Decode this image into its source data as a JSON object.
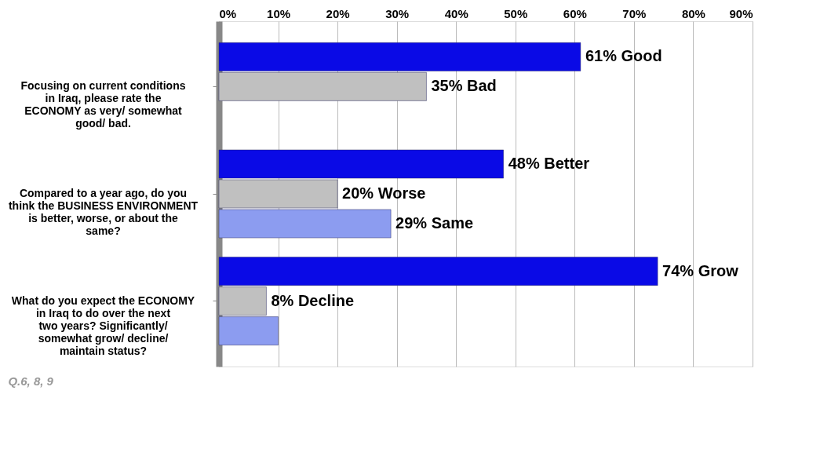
{
  "chart_data": {
    "type": "bar",
    "orientation": "horizontal",
    "categories": [
      "Focusing on current conditions in Iraq, please rate the ECONOMY as very/ somewhat good/ bad.",
      "Compared to a year ago, do you think the BUSINESS ENVIRONMENT is better, worse, or about the same?",
      "What do you expect the ECONOMY in Iraq to do over the next two years? Significantly/ somewhat grow/ decline/ maintain status?"
    ],
    "series": [
      {
        "color": "#0a0ae6",
        "values": [
          61,
          48,
          74
        ],
        "value_labels": [
          "61% Good",
          "48% Better",
          "74% Grow"
        ]
      },
      {
        "color": "#c0c0c0",
        "values": [
          35,
          20,
          8
        ],
        "value_labels": [
          "35% Bad",
          "20% Worse",
          "8% Decline"
        ]
      },
      {
        "color": "#8c9cf0",
        "values": [
          null,
          29,
          10
        ],
        "value_labels": [
          null,
          "29% Same",
          null
        ]
      }
    ],
    "xlim": [
      0,
      90
    ],
    "xticks": [
      {
        "value": 0,
        "label": "0%"
      },
      {
        "value": 10,
        "label": "10%"
      },
      {
        "value": 20,
        "label": "20%"
      },
      {
        "value": 30,
        "label": "30%"
      },
      {
        "value": 40,
        "label": "40%"
      },
      {
        "value": 50,
        "label": "50%"
      },
      {
        "value": 60,
        "label": "60%"
      },
      {
        "value": 70,
        "label": "70%"
      },
      {
        "value": 80,
        "label": "80%"
      },
      {
        "value": 90,
        "label": "90%"
      }
    ],
    "grid": "x",
    "annotations": [
      "Q.6, 8, 9"
    ]
  }
}
